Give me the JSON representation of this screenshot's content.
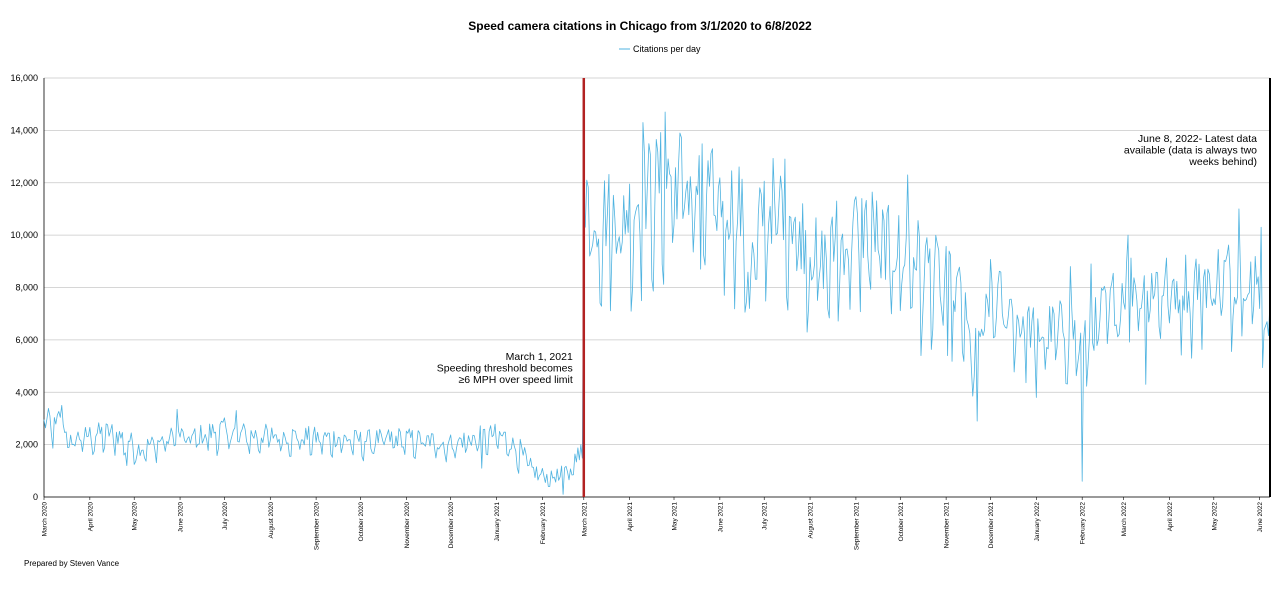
{
  "chart_data": {
    "type": "line",
    "title": "Speed camera citations in Chicago from 3/1/2020 to 6/8/2022",
    "legend": {
      "label": "Citations per day",
      "color": "#4fb3e0",
      "position": "top-center"
    },
    "xlabel": "",
    "ylabel": "",
    "ylim": [
      0,
      16000
    ],
    "y_ticks": [
      "0",
      "2,000",
      "4,000",
      "6,000",
      "8,000",
      "10,000",
      "12,000",
      "14,000",
      "16,000"
    ],
    "y_tick_values": [
      0,
      2000,
      4000,
      6000,
      8000,
      10000,
      12000,
      14000,
      16000
    ],
    "grid": true,
    "date_range": [
      "2020-03-01",
      "2022-06-08"
    ],
    "x_ticks": [
      "March 2020",
      "April 2020",
      "May 2020",
      "June 2020",
      "July 2020",
      "August 2020",
      "September 2020",
      "October 2020",
      "November 2020",
      "December 2020",
      "January 2021",
      "February 2021",
      "March 2021",
      "April 2021",
      "May 2021",
      "June 2021",
      "July 2021",
      "August 2021",
      "September 2021",
      "October 2021",
      "November 2021",
      "December 2021",
      "January 2022",
      "February 2022",
      "March 2022",
      "April 2022",
      "May 2022",
      "June 2022"
    ],
    "x_tick_day_index": [
      0,
      31,
      61,
      92,
      122,
      153,
      184,
      214,
      245,
      275,
      306,
      337,
      365,
      396,
      426,
      457,
      487,
      518,
      549,
      579,
      610,
      640,
      671,
      702,
      730,
      761,
      791,
      822
    ],
    "series": [
      {
        "name": "Citations per day",
        "frequency": "daily (approximate reading of plotted curve)",
        "anchors": [
          [
            0,
            2700
          ],
          [
            4,
            2800
          ],
          [
            8,
            2500
          ],
          [
            12,
            3300
          ],
          [
            16,
            2000
          ],
          [
            22,
            2200
          ],
          [
            31,
            2300
          ],
          [
            45,
            2400
          ],
          [
            58,
            2100
          ],
          [
            63,
            1800
          ],
          [
            75,
            2000
          ],
          [
            90,
            2300
          ],
          [
            100,
            2200
          ],
          [
            120,
            2500
          ],
          [
            140,
            2300
          ],
          [
            160,
            2300
          ],
          [
            184,
            2200
          ],
          [
            200,
            2200
          ],
          [
            214,
            2100
          ],
          [
            240,
            2200
          ],
          [
            260,
            2100
          ],
          [
            275,
            2000
          ],
          [
            290,
            2200
          ],
          [
            305,
            2300
          ],
          [
            313,
            2200
          ],
          [
            322,
            1600
          ],
          [
            330,
            1000
          ],
          [
            342,
            700
          ],
          [
            352,
            900
          ],
          [
            358,
            1200
          ],
          [
            364,
            1700
          ],
          [
            365,
            11500
          ],
          [
            372,
            10500
          ],
          [
            385,
            10500
          ],
          [
            396,
            10600
          ],
          [
            410,
            11500
          ],
          [
            426,
            12000
          ],
          [
            440,
            11500
          ],
          [
            457,
            11000
          ],
          [
            470,
            10800
          ],
          [
            478,
            8500
          ],
          [
            487,
            10800
          ],
          [
            500,
            11000
          ],
          [
            507,
            10500
          ],
          [
            515,
            9500
          ],
          [
            525,
            8700
          ],
          [
            540,
            9500
          ],
          [
            549,
            10000
          ],
          [
            560,
            10000
          ],
          [
            570,
            9300
          ],
          [
            579,
            9200
          ],
          [
            590,
            9000
          ],
          [
            600,
            8500
          ],
          [
            610,
            8000
          ],
          [
            620,
            7500
          ],
          [
            628,
            5000
          ],
          [
            640,
            7600
          ],
          [
            655,
            7000
          ],
          [
            671,
            6000
          ],
          [
            685,
            6300
          ],
          [
            695,
            6300
          ],
          [
            702,
            5500
          ],
          [
            715,
            6800
          ],
          [
            730,
            7800
          ],
          [
            745,
            8200
          ],
          [
            761,
            7800
          ],
          [
            775,
            8000
          ],
          [
            791,
            8200
          ],
          [
            805,
            8300
          ],
          [
            815,
            8600
          ],
          [
            822,
            7500
          ],
          [
            829,
            6600
          ]
        ],
        "spikes": [
          [
            12,
            3500
          ],
          [
            56,
            1200
          ],
          [
            90,
            3350
          ],
          [
            130,
            3300
          ],
          [
            296,
            1100
          ],
          [
            351,
            100
          ],
          [
            363,
            2000
          ],
          [
            367,
            12100
          ],
          [
            376,
            7400
          ],
          [
            405,
            14300
          ],
          [
            420,
            14700
          ],
          [
            430,
            13900
          ],
          [
            444,
            8700
          ],
          [
            452,
            13300
          ],
          [
            477,
            7200
          ],
          [
            536,
            11300
          ],
          [
            584,
            12300
          ],
          [
            593,
            5400
          ],
          [
            611,
            5400
          ],
          [
            631,
            2900
          ],
          [
            660,
            6100
          ],
          [
            671,
            3800
          ],
          [
            694,
            8800
          ],
          [
            702,
            600
          ],
          [
            708,
            8900
          ],
          [
            733,
            10000
          ],
          [
            745,
            4300
          ],
          [
            776,
            5300
          ],
          [
            808,
            11000
          ],
          [
            823,
            10300
          ]
        ]
      }
    ],
    "annotations": [
      {
        "day_index": 365,
        "color": "#b22222",
        "lines": [
          "March 1, 2021",
          "Speeding threshold becomes",
          "≥6 MPH over speed limit"
        ]
      },
      {
        "day_index": 829,
        "color": "#000000",
        "lines": [
          "June 8, 2022- Latest data",
          "available (data is always two",
          "weeks behind)"
        ]
      }
    ]
  },
  "footer": {
    "credit": "Prepared by Steven Vance"
  }
}
